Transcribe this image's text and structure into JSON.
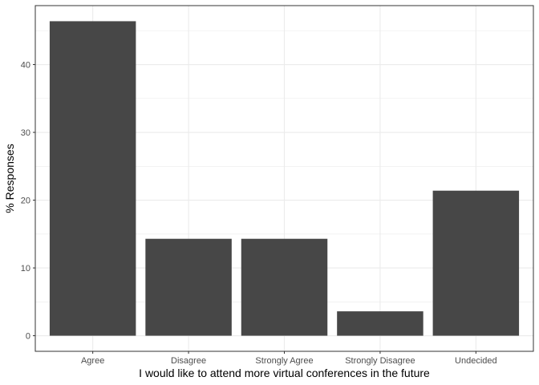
{
  "chart_data": {
    "type": "bar",
    "title": "",
    "xlabel": "I would like to attend more virtual conferences in the future",
    "ylabel": "% Responses",
    "categories": [
      "Agree",
      "Disagree",
      "Strongly Agree",
      "Strongly Disagree",
      "Undecided"
    ],
    "values": [
      46.4,
      14.3,
      14.3,
      3.6,
      21.4
    ],
    "ylim": [
      -2.3,
      48.7
    ],
    "yticks": [
      0,
      10,
      20,
      30,
      40
    ],
    "grid": true,
    "theme": "bw",
    "bar_color": "#474747",
    "gridline_color": "#ebebeb",
    "panel_border_color": "#333333"
  }
}
